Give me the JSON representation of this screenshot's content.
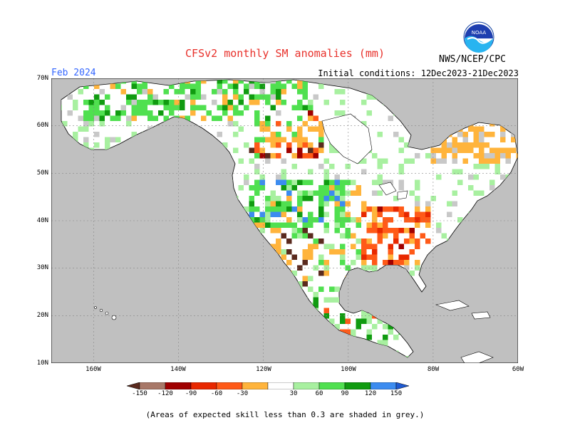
{
  "header": {
    "title": "CFSv2 monthly SM anomalies (mm)",
    "month": "Feb 2024",
    "initial_conditions": "Initial conditions: 12Dec2023-21Dec2023",
    "agency": "NWS/NCEP/CPC",
    "logo_text": "NOAA"
  },
  "axes": {
    "lat_labels": [
      "70N",
      "60N",
      "50N",
      "40N",
      "30N",
      "20N",
      "10N"
    ],
    "lon_labels": [
      "160W",
      "140W",
      "120W",
      "100W",
      "80W",
      "60W"
    ]
  },
  "colorbar": {
    "labels": [
      "-150",
      "-120",
      "-90",
      "-60",
      "-30",
      "30",
      "60",
      "90",
      "120",
      "150"
    ],
    "colors": [
      "#5a2a1e",
      "#a87868",
      "#a00000",
      "#e82800",
      "#ff5a18",
      "#ffb43c",
      "#ffffff",
      "#a8f0a0",
      "#50e050",
      "#109b10",
      "#3c8cf0",
      "#1e5ad2"
    ]
  },
  "footnote": "(Areas of expected skill less than 0.3 are shaded in grey.)",
  "map": {
    "ocean_color": "#c0c0c0",
    "land_color": "#ffffff",
    "grey_skill_color": "#c8c8c8"
  }
}
